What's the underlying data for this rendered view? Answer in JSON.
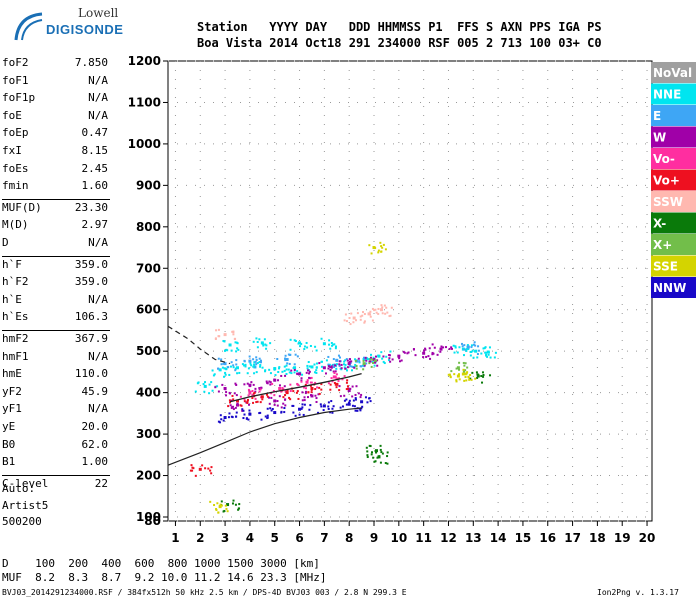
{
  "logo": {
    "line1": "Lowell",
    "line2": "DIGISONDE"
  },
  "header": {
    "row1": "Station   YYYY DAY   DDD HHMMSS P1  FFS S AXN PPS IGA PS",
    "row2": "Boa Vista 2014 Oct18 291 234000 RSF 005 2 713 100 03+ C0"
  },
  "params": [
    {
      "label": "foF2",
      "value": "7.850"
    },
    {
      "label": "foF1",
      "value": "N/A"
    },
    {
      "label": "foF1p",
      "value": "N/A"
    },
    {
      "label": "foE",
      "value": "N/A"
    },
    {
      "label": "foEp",
      "value": "0.47"
    },
    {
      "label": "fxI",
      "value": "8.15"
    },
    {
      "label": "foEs",
      "value": "2.45"
    },
    {
      "label": "fmin",
      "value": "1.60"
    },
    {
      "label": "MUF(D)",
      "value": "23.30"
    },
    {
      "label": "M(D)",
      "value": "2.97"
    },
    {
      "label": "D",
      "value": "N/A"
    },
    {
      "label": "h`F",
      "value": "359.0"
    },
    {
      "label": "h`F2",
      "value": "359.0"
    },
    {
      "label": "h`E",
      "value": "N/A"
    },
    {
      "label": "h`Es",
      "value": "106.3"
    },
    {
      "label": "hmF2",
      "value": "367.9"
    },
    {
      "label": "hmF1",
      "value": "N/A"
    },
    {
      "label": "hmE",
      "value": "110.0"
    },
    {
      "label": "yF2",
      "value": "45.9"
    },
    {
      "label": "yF1",
      "value": "N/A"
    },
    {
      "label": "yE",
      "value": "20.0"
    },
    {
      "label": "B0",
      "value": "62.0"
    },
    {
      "label": "B1",
      "value": "1.00"
    },
    {
      "label": "C-level",
      "value": "22"
    }
  ],
  "auto": {
    "line1": "Auto:",
    "line2": "Artist5",
    "line3": "500200"
  },
  "legend": [
    {
      "label": "NoVal",
      "bg": "#a0a0a0"
    },
    {
      "label": "NNE",
      "bg": "#00e5f0"
    },
    {
      "label": "E",
      "bg": "#3ea6f5"
    },
    {
      "label": "W",
      "bg": "#a000a8"
    },
    {
      "label": "Vo-",
      "bg": "#ff2ea0"
    },
    {
      "label": "Vo+",
      "bg": "#ee1020"
    },
    {
      "label": "SSW",
      "bg": "#ffb8b0"
    },
    {
      "label": "X-",
      "bg": "#0a7a0a"
    },
    {
      "label": "X+",
      "bg": "#72be4a"
    },
    {
      "label": "SSE",
      "bg": "#d4d400"
    },
    {
      "label": "NNW",
      "bg": "#1808c8"
    }
  ],
  "footer": {
    "d_row": "D    100  200  400  600  800 1000 1500 3000 [km]",
    "muf_row": "MUF  8.2  8.3  8.7  9.2 10.0 11.2 14.6 23.3 [MHz]",
    "file_line": "BVJ03_2014291234000.RSF / 384fx512h 50 kHz 2.5 km / DPS-4D BVJ03 003 / 2.8 N 299.3 E",
    "version": "Ion2Png v. 1.3.17"
  },
  "chart_data": {
    "type": "scatter",
    "title": "",
    "xlabel": "",
    "ylabel": "",
    "xlim": [
      0.7,
      20.2
    ],
    "ylim": [
      80,
      1210
    ],
    "x_ticks": [
      1,
      2,
      3,
      4,
      5,
      6,
      7,
      8,
      9,
      10,
      11,
      12,
      13,
      14,
      15,
      16,
      17,
      18,
      19,
      20
    ],
    "y_ticks": [
      80,
      100,
      200,
      300,
      400,
      500,
      600,
      700,
      800,
      900,
      1000,
      1100,
      1200
    ],
    "grid": true,
    "legend_position": "right",
    "series": [
      {
        "name": "NNE",
        "color": "#00e5f0",
        "points": [
          [
            2.8,
            455
          ],
          [
            3.5,
            460
          ],
          [
            4.2,
            462
          ],
          [
            5.0,
            458
          ],
          [
            5.8,
            460
          ],
          [
            6.5,
            462
          ],
          [
            7.2,
            466
          ],
          [
            8.0,
            470
          ],
          [
            8.6,
            480
          ],
          [
            9.2,
            488
          ],
          [
            3.2,
            515
          ],
          [
            4.5,
            520
          ],
          [
            6.0,
            520
          ],
          [
            7.0,
            518
          ],
          [
            2.2,
            415
          ],
          [
            12.6,
            505
          ],
          [
            13.1,
            500
          ],
          [
            13.6,
            498
          ]
        ]
      },
      {
        "name": "E",
        "color": "#3ea6f5",
        "points": [
          [
            3.0,
            470
          ],
          [
            4.0,
            476
          ],
          [
            5.5,
            480
          ],
          [
            7.5,
            478
          ],
          [
            8.3,
            476
          ],
          [
            12.8,
            510
          ]
        ]
      },
      {
        "name": "W",
        "color": "#a000a8",
        "points": [
          [
            3.0,
            410
          ],
          [
            4.0,
            418
          ],
          [
            5.0,
            430
          ],
          [
            6.0,
            445
          ],
          [
            7.0,
            460
          ],
          [
            8.0,
            470
          ],
          [
            9.0,
            480
          ],
          [
            10.0,
            488
          ],
          [
            11.0,
            495
          ],
          [
            11.7,
            505
          ],
          [
            3.5,
            370
          ],
          [
            5.0,
            380
          ],
          [
            6.5,
            392
          ],
          [
            8.0,
            405
          ]
        ]
      },
      {
        "name": "Vo-",
        "color": "#ff2ea0",
        "points": [
          [
            4.0,
            400
          ],
          [
            5.2,
            410
          ],
          [
            6.3,
            425
          ],
          [
            7.4,
            438
          ]
        ]
      },
      {
        "name": "Vo+",
        "color": "#ee1020",
        "points": [
          [
            3.5,
            380
          ],
          [
            4.5,
            390
          ],
          [
            5.5,
            400
          ],
          [
            6.5,
            410
          ],
          [
            7.5,
            420
          ],
          [
            2.0,
            215
          ]
        ]
      },
      {
        "name": "SSW",
        "color": "#ffb8b0",
        "points": [
          [
            8.2,
            580
          ],
          [
            8.8,
            590
          ],
          [
            9.3,
            600
          ],
          [
            3.0,
            540
          ]
        ]
      },
      {
        "name": "X-",
        "color": "#0a7a0a",
        "points": [
          [
            9.1,
            260
          ],
          [
            9.2,
            245
          ],
          [
            3.1,
            130
          ],
          [
            13.2,
            440
          ]
        ]
      },
      {
        "name": "X+",
        "color": "#72be4a",
        "points": [
          [
            8.6,
            470
          ],
          [
            12.4,
            460
          ]
        ]
      },
      {
        "name": "SSE",
        "color": "#d4d400",
        "points": [
          [
            9.0,
            750
          ],
          [
            12.4,
            440
          ],
          [
            12.6,
            445
          ],
          [
            2.8,
            125
          ]
        ]
      },
      {
        "name": "NNW",
        "color": "#1808c8",
        "points": [
          [
            3.0,
            340
          ],
          [
            4.0,
            348
          ],
          [
            5.0,
            352
          ],
          [
            6.0,
            360
          ],
          [
            7.0,
            368
          ],
          [
            8.0,
            372
          ],
          [
            8.5,
            378
          ]
        ]
      }
    ],
    "profile_curves": [
      {
        "style": "solid",
        "points": [
          [
            0.7,
            225
          ],
          [
            2,
            255
          ],
          [
            3,
            280
          ],
          [
            4,
            305
          ],
          [
            5,
            325
          ],
          [
            6,
            340
          ],
          [
            7,
            352
          ],
          [
            8,
            360
          ],
          [
            8.5,
            363
          ]
        ]
      },
      {
        "style": "dashed",
        "points": [
          [
            0.7,
            560
          ],
          [
            1.5,
            530
          ],
          [
            2,
            505
          ],
          [
            2.6,
            480
          ],
          [
            3.2,
            470
          ]
        ]
      },
      {
        "style": "trace",
        "points": [
          [
            3.2,
            378
          ],
          [
            4,
            390
          ],
          [
            5,
            402
          ],
          [
            6,
            413
          ],
          [
            7,
            425
          ],
          [
            8,
            438
          ],
          [
            8.5,
            446
          ]
        ]
      }
    ]
  }
}
